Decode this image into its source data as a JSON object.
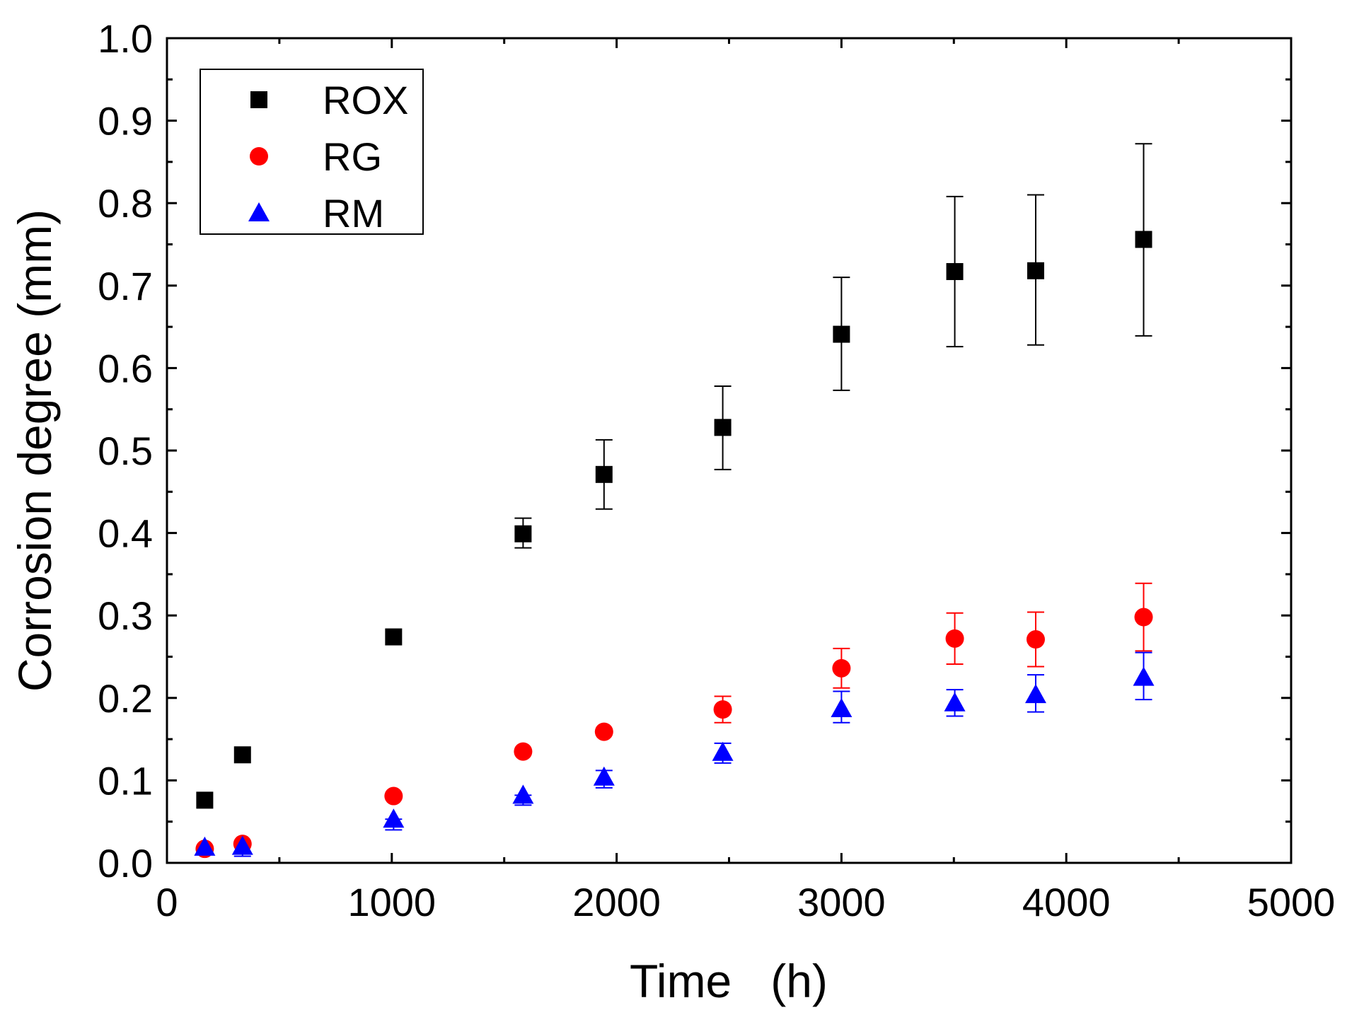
{
  "chart_data": {
    "type": "scatter",
    "xlabel": "Time   (h)",
    "ylabel": "Corrosion degree (mm)",
    "xlim": [
      0,
      5000
    ],
    "ylim": [
      0,
      1.0
    ],
    "x_ticks": [
      0,
      1000,
      2000,
      3000,
      4000,
      5000
    ],
    "x_tick_labels": [
      "0",
      "1000",
      "2000",
      "3000",
      "4000",
      "5000"
    ],
    "y_ticks": [
      0.0,
      0.1,
      0.2,
      0.3,
      0.4,
      0.5,
      0.6,
      0.7,
      0.8,
      0.9,
      1.0
    ],
    "y_tick_labels": [
      "0.0",
      "0.1",
      "0.2",
      "0.3",
      "0.4",
      "0.5",
      "0.6",
      "0.7",
      "0.8",
      "0.9",
      "1.0"
    ],
    "grid": false,
    "legend_position": "top-left",
    "series": [
      {
        "name": "ROX",
        "marker": "square",
        "color": "#000000",
        "x": [
          168,
          336,
          1008,
          1584,
          1944,
          2472,
          3000,
          3504,
          3864,
          4344
        ],
        "y": [
          0.076,
          0.131,
          0.274,
          0.399,
          0.471,
          0.528,
          0.641,
          0.717,
          0.718,
          0.756
        ],
        "err_up": [
          0.076,
          0.131,
          0.274,
          0.418,
          0.513,
          0.578,
          0.71,
          0.808,
          0.81,
          0.872
        ],
        "err_low": [
          0.076,
          0.131,
          0.274,
          0.382,
          0.429,
          0.477,
          0.573,
          0.626,
          0.628,
          0.639
        ]
      },
      {
        "name": "RG",
        "marker": "circle",
        "color": "#ff0000",
        "x": [
          168,
          336,
          1008,
          1584,
          1944,
          2472,
          3000,
          3504,
          3864,
          4344
        ],
        "y": [
          0.017,
          0.023,
          0.081,
          0.135,
          0.159,
          0.186,
          0.236,
          0.272,
          0.271,
          0.298
        ],
        "err_up": [
          0.017,
          0.023,
          0.081,
          0.135,
          0.159,
          0.202,
          0.26,
          0.303,
          0.304,
          0.339
        ],
        "err_low": [
          0.017,
          0.023,
          0.081,
          0.135,
          0.159,
          0.17,
          0.212,
          0.241,
          0.238,
          0.257
        ]
      },
      {
        "name": "RM",
        "marker": "triangle",
        "color": "#0000ff",
        "x": [
          168,
          336,
          1008,
          1584,
          1944,
          2472,
          3000,
          3504,
          3864,
          4344
        ],
        "y": [
          0.019,
          0.02,
          0.053,
          0.082,
          0.104,
          0.134,
          0.187,
          0.194,
          0.204,
          0.225
        ],
        "err_up": [
          0.019,
          0.02,
          0.053,
          0.082,
          0.112,
          0.145,
          0.208,
          0.21,
          0.228,
          0.255
        ],
        "err_low": [
          0.019,
          0.008,
          0.04,
          0.07,
          0.091,
          0.121,
          0.17,
          0.178,
          0.183,
          0.198
        ]
      }
    ]
  }
}
